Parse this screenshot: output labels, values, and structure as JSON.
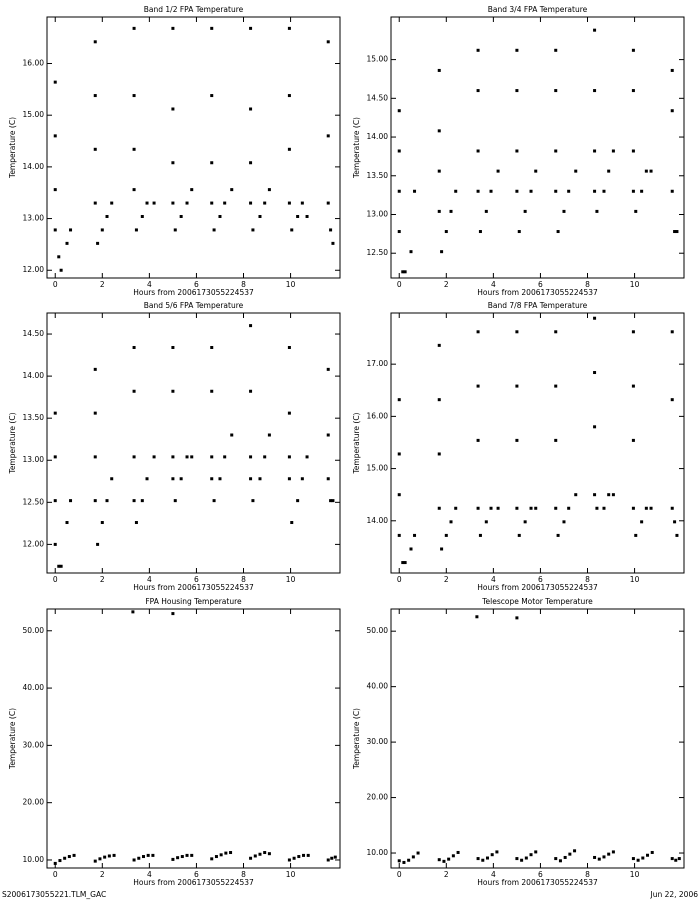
{
  "chart_data": [
    {
      "type": "scatter",
      "title": "Band 1/2 FPA Temperature",
      "xlabel": "Hours from 2006173055224537",
      "ylabel": "Temperature (C)",
      "color": "#000000",
      "xlim": [
        -0.35,
        12.1
      ],
      "ylim": [
        11.85,
        16.9
      ],
      "xticks": [
        0,
        2,
        4,
        6,
        8,
        10
      ],
      "yticks": [
        {
          "value": 12,
          "label": "12.00"
        },
        {
          "value": 13,
          "label": "13.00"
        },
        {
          "value": 14,
          "label": "14.00"
        },
        {
          "value": 15,
          "label": "15.00"
        },
        {
          "value": 16,
          "label": "16.00"
        }
      ],
      "x": [
        0,
        0,
        0,
        0,
        0.15,
        0.25,
        0.5,
        0.65,
        1.7,
        1.7,
        1.7,
        1.7,
        1.8,
        2.0,
        2.2,
        2.4,
        3.35,
        3.35,
        3.35,
        3.35,
        3.45,
        3.7,
        3.9,
        4.2,
        5.0,
        5.0,
        5.0,
        5.0,
        5.1,
        5.35,
        5.6,
        5.8,
        6.65,
        6.65,
        6.65,
        6.65,
        6.75,
        7.0,
        7.2,
        7.5,
        8.3,
        8.3,
        8.3,
        8.3,
        8.4,
        8.7,
        8.9,
        9.1,
        9.95,
        9.95,
        9.95,
        9.95,
        10.05,
        10.3,
        10.5,
        10.7,
        11.6,
        11.6,
        11.6,
        11.7,
        11.8
      ],
      "values": [
        15.64,
        14.6,
        13.56,
        12.78,
        12.26,
        12.0,
        12.52,
        12.78,
        16.42,
        15.38,
        14.34,
        13.3,
        12.52,
        12.78,
        13.04,
        13.3,
        16.68,
        15.38,
        14.34,
        13.56,
        12.78,
        13.04,
        13.3,
        13.3,
        16.68,
        15.12,
        14.08,
        13.3,
        12.78,
        13.04,
        13.3,
        13.56,
        16.68,
        15.38,
        14.08,
        13.3,
        12.78,
        13.04,
        13.3,
        13.56,
        16.68,
        15.12,
        14.08,
        13.3,
        12.78,
        13.04,
        13.3,
        13.56,
        16.68,
        15.38,
        14.34,
        13.3,
        12.78,
        13.04,
        13.3,
        13.04,
        16.42,
        14.6,
        13.3,
        12.78,
        12.52
      ]
    },
    {
      "type": "scatter",
      "title": "Band 3/4 FPA Temperature",
      "xlabel": "Hours from 2006173055224537",
      "ylabel": "Temperature (C)",
      "color": "#000000",
      "xlim": [
        -0.35,
        12.1
      ],
      "ylim": [
        12.18,
        15.55
      ],
      "xticks": [
        0,
        2,
        4,
        6,
        8,
        10
      ],
      "yticks": [
        {
          "value": 12.5,
          "label": "12.50"
        },
        {
          "value": 13,
          "label": "13.00"
        },
        {
          "value": 13.5,
          "label": "13.50"
        },
        {
          "value": 14,
          "label": "14.00"
        },
        {
          "value": 14.5,
          "label": "14.50"
        },
        {
          "value": 15,
          "label": "15.00"
        }
      ],
      "x": [
        0,
        0,
        0,
        0,
        0.15,
        0.25,
        0.5,
        0.65,
        1.7,
        1.7,
        1.7,
        1.7,
        1.8,
        2.0,
        2.2,
        2.4,
        3.35,
        3.35,
        3.35,
        3.35,
        3.45,
        3.7,
        3.9,
        4.2,
        5.0,
        5.0,
        5.0,
        5.0,
        5.1,
        5.35,
        5.6,
        5.8,
        6.65,
        6.65,
        6.65,
        6.65,
        6.75,
        7.0,
        7.2,
        7.5,
        8.3,
        8.3,
        8.3,
        8.3,
        8.4,
        8.7,
        8.9,
        9.1,
        9.95,
        9.95,
        9.95,
        9.95,
        10.05,
        10.3,
        10.5,
        10.7,
        11.6,
        11.6,
        11.6,
        11.7,
        11.8
      ],
      "values": [
        14.34,
        13.82,
        13.3,
        12.78,
        12.26,
        12.26,
        12.52,
        13.3,
        14.86,
        14.08,
        13.56,
        13.04,
        12.52,
        12.78,
        13.04,
        13.3,
        15.12,
        14.6,
        13.82,
        13.3,
        12.78,
        13.04,
        13.3,
        13.56,
        15.12,
        14.6,
        13.82,
        13.3,
        12.78,
        13.04,
        13.3,
        13.56,
        15.12,
        14.6,
        13.82,
        13.3,
        12.78,
        13.04,
        13.3,
        13.56,
        15.38,
        14.6,
        13.82,
        13.3,
        13.04,
        13.3,
        13.56,
        13.82,
        15.12,
        14.6,
        13.82,
        13.3,
        13.04,
        13.3,
        13.56,
        13.56,
        14.86,
        14.34,
        13.3,
        12.78,
        12.78
      ]
    },
    {
      "type": "scatter",
      "title": "Band 5/6 FPA Temperature",
      "xlabel": "Hours from 2006173055224537",
      "ylabel": "Temperature (C)",
      "color": "#000000",
      "xlim": [
        -0.35,
        12.1
      ],
      "ylim": [
        11.66,
        14.75
      ],
      "xticks": [
        0,
        2,
        4,
        6,
        8,
        10
      ],
      "yticks": [
        {
          "value": 12,
          "label": "12.00"
        },
        {
          "value": 12.5,
          "label": "12.50"
        },
        {
          "value": 13,
          "label": "13.00"
        },
        {
          "value": 13.5,
          "label": "13.50"
        },
        {
          "value": 14,
          "label": "14.00"
        },
        {
          "value": 14.5,
          "label": "14.50"
        }
      ],
      "x": [
        0,
        0,
        0,
        0,
        0.15,
        0.25,
        0.5,
        0.65,
        1.7,
        1.7,
        1.7,
        1.7,
        1.8,
        2.0,
        2.2,
        2.4,
        3.35,
        3.35,
        3.35,
        3.35,
        3.45,
        3.7,
        3.9,
        4.2,
        5.0,
        5.0,
        5.0,
        5.0,
        5.1,
        5.35,
        5.6,
        5.8,
        6.65,
        6.65,
        6.65,
        6.65,
        6.75,
        7.0,
        7.2,
        7.5,
        8.3,
        8.3,
        8.3,
        8.3,
        8.4,
        8.7,
        8.9,
        9.1,
        9.95,
        9.95,
        9.95,
        9.95,
        10.05,
        10.3,
        10.5,
        10.7,
        11.6,
        11.6,
        11.6,
        11.7,
        11.8
      ],
      "values": [
        13.56,
        13.04,
        12.52,
        12.0,
        11.74,
        11.74,
        12.26,
        12.52,
        14.08,
        13.56,
        13.04,
        12.52,
        12.0,
        12.26,
        12.52,
        12.78,
        14.34,
        13.82,
        13.04,
        12.52,
        12.26,
        12.52,
        12.78,
        13.04,
        14.34,
        13.82,
        13.04,
        12.78,
        12.52,
        12.78,
        13.04,
        13.04,
        14.34,
        13.82,
        13.04,
        12.78,
        12.52,
        12.78,
        13.04,
        13.3,
        14.6,
        13.82,
        13.04,
        12.78,
        12.52,
        12.78,
        13.04,
        13.3,
        14.34,
        13.56,
        13.04,
        12.78,
        12.26,
        12.52,
        12.78,
        13.04,
        14.08,
        13.3,
        12.78,
        12.52,
        12.52
      ]
    },
    {
      "type": "scatter",
      "title": "Band 7/8 FPA Temperature",
      "xlabel": "Hours from 2006173055224537",
      "ylabel": "Temperature (C)",
      "color": "#000000",
      "xlim": [
        -0.35,
        12.1
      ],
      "ylim": [
        13.0,
        17.98
      ],
      "xticks": [
        0,
        2,
        4,
        6,
        8,
        10
      ],
      "yticks": [
        {
          "value": 14,
          "label": "14.00"
        },
        {
          "value": 15,
          "label": "15.00"
        },
        {
          "value": 16,
          "label": "16.00"
        },
        {
          "value": 17,
          "label": "17.00"
        }
      ],
      "x": [
        0,
        0,
        0,
        0,
        0.15,
        0.25,
        0.5,
        0.65,
        1.7,
        1.7,
        1.7,
        1.7,
        1.8,
        2.0,
        2.2,
        2.4,
        3.35,
        3.35,
        3.35,
        3.35,
        3.45,
        3.7,
        3.9,
        4.2,
        5.0,
        5.0,
        5.0,
        5.0,
        5.1,
        5.35,
        5.6,
        5.8,
        6.65,
        6.65,
        6.65,
        6.65,
        6.75,
        7.0,
        7.2,
        7.5,
        8.3,
        8.3,
        8.3,
        8.3,
        8.4,
        8.7,
        8.9,
        9.1,
        9.95,
        9.95,
        9.95,
        9.95,
        10.05,
        10.3,
        10.5,
        10.7,
        11.6,
        11.6,
        11.6,
        11.7,
        11.8
      ],
      "values": [
        16.32,
        15.28,
        14.5,
        13.72,
        13.2,
        13.2,
        13.46,
        13.72,
        17.36,
        16.32,
        15.28,
        14.24,
        13.46,
        13.72,
        13.98,
        14.24,
        17.62,
        16.58,
        15.54,
        14.24,
        13.72,
        13.98,
        14.24,
        14.24,
        17.62,
        16.58,
        15.54,
        14.24,
        13.72,
        13.98,
        14.24,
        14.24,
        17.62,
        16.58,
        15.54,
        14.24,
        13.72,
        13.98,
        14.24,
        14.5,
        17.88,
        16.84,
        15.8,
        14.5,
        14.24,
        14.24,
        14.5,
        14.5,
        17.62,
        16.58,
        15.54,
        14.24,
        13.72,
        13.98,
        14.24,
        14.24,
        17.62,
        16.32,
        14.24,
        13.98,
        13.72
      ]
    },
    {
      "type": "scatter",
      "title": "FPA Housing Temperature",
      "xlabel": "Hours from 2006173055224537",
      "ylabel": "Temperature (C)",
      "color": "#000000",
      "xlim": [
        -0.35,
        12.1
      ],
      "ylim": [
        8.6,
        53.8
      ],
      "xticks": [
        0,
        2,
        4,
        6,
        8,
        10
      ],
      "yticks": [
        {
          "value": 10,
          "label": "10.00"
        },
        {
          "value": 20,
          "label": "20.00"
        },
        {
          "value": 30,
          "label": "30.00"
        },
        {
          "value": 40,
          "label": "40.00"
        },
        {
          "value": 50,
          "label": "50.00"
        }
      ],
      "x": [
        0,
        0.2,
        0.4,
        0.6,
        0.8,
        1.7,
        1.9,
        2.1,
        2.3,
        2.5,
        3.35,
        3.55,
        3.75,
        3.95,
        4.15,
        5.0,
        5.2,
        5.4,
        5.6,
        5.8,
        6.65,
        6.85,
        7.05,
        7.25,
        7.45,
        8.3,
        8.5,
        8.7,
        8.9,
        9.1,
        9.95,
        10.15,
        10.35,
        10.55,
        10.75,
        11.6,
        11.75,
        11.9,
        3.3,
        5.0
      ],
      "values": [
        9.4,
        9.9,
        10.3,
        10.6,
        10.8,
        9.8,
        10.2,
        10.5,
        10.7,
        10.8,
        10.0,
        10.3,
        10.6,
        10.8,
        10.8,
        10.1,
        10.4,
        10.6,
        10.8,
        10.8,
        10.2,
        10.6,
        10.9,
        11.2,
        11.3,
        10.3,
        10.7,
        11.0,
        11.3,
        11.1,
        10.0,
        10.3,
        10.6,
        10.8,
        10.8,
        10.0,
        10.3,
        10.5,
        53.3,
        53.0
      ]
    },
    {
      "type": "scatter",
      "title": "Telescope Motor Temperature",
      "xlabel": "Hours from 2006173055224537",
      "ylabel": "Temperature (C)",
      "color": "#000000",
      "xlim": [
        -0.35,
        12.1
      ],
      "ylim": [
        7.3,
        54.0
      ],
      "xticks": [
        0,
        2,
        4,
        6,
        8,
        10
      ],
      "yticks": [
        {
          "value": 10,
          "label": "10.00"
        },
        {
          "value": 20,
          "label": "20.00"
        },
        {
          "value": 30,
          "label": "30.00"
        },
        {
          "value": 40,
          "label": "40.00"
        },
        {
          "value": 50,
          "label": "50.00"
        }
      ],
      "x": [
        0,
        0.2,
        0.4,
        0.6,
        0.8,
        1.7,
        1.9,
        2.1,
        2.3,
        2.5,
        3.35,
        3.55,
        3.75,
        3.95,
        4.15,
        5.0,
        5.2,
        5.4,
        5.6,
        5.8,
        6.65,
        6.85,
        7.05,
        7.25,
        7.45,
        8.3,
        8.5,
        8.7,
        8.9,
        9.1,
        9.95,
        10.15,
        10.35,
        10.55,
        10.75,
        11.6,
        11.75,
        11.9,
        3.3,
        5.0
      ],
      "values": [
        8.6,
        8.3,
        8.7,
        9.3,
        10.0,
        8.8,
        8.5,
        8.9,
        9.5,
        10.1,
        9.0,
        8.7,
        9.1,
        9.7,
        10.2,
        9.0,
        8.7,
        9.1,
        9.7,
        10.2,
        9.0,
        8.6,
        9.2,
        9.8,
        10.4,
        9.2,
        8.9,
        9.3,
        9.8,
        10.2,
        9.0,
        8.7,
        9.1,
        9.6,
        10.1,
        9.0,
        8.7,
        9.0,
        52.6,
        52.4
      ]
    }
  ],
  "footer": {
    "left": "S2006173055221.TLM_GAC",
    "right": "Jun 22, 2006"
  }
}
